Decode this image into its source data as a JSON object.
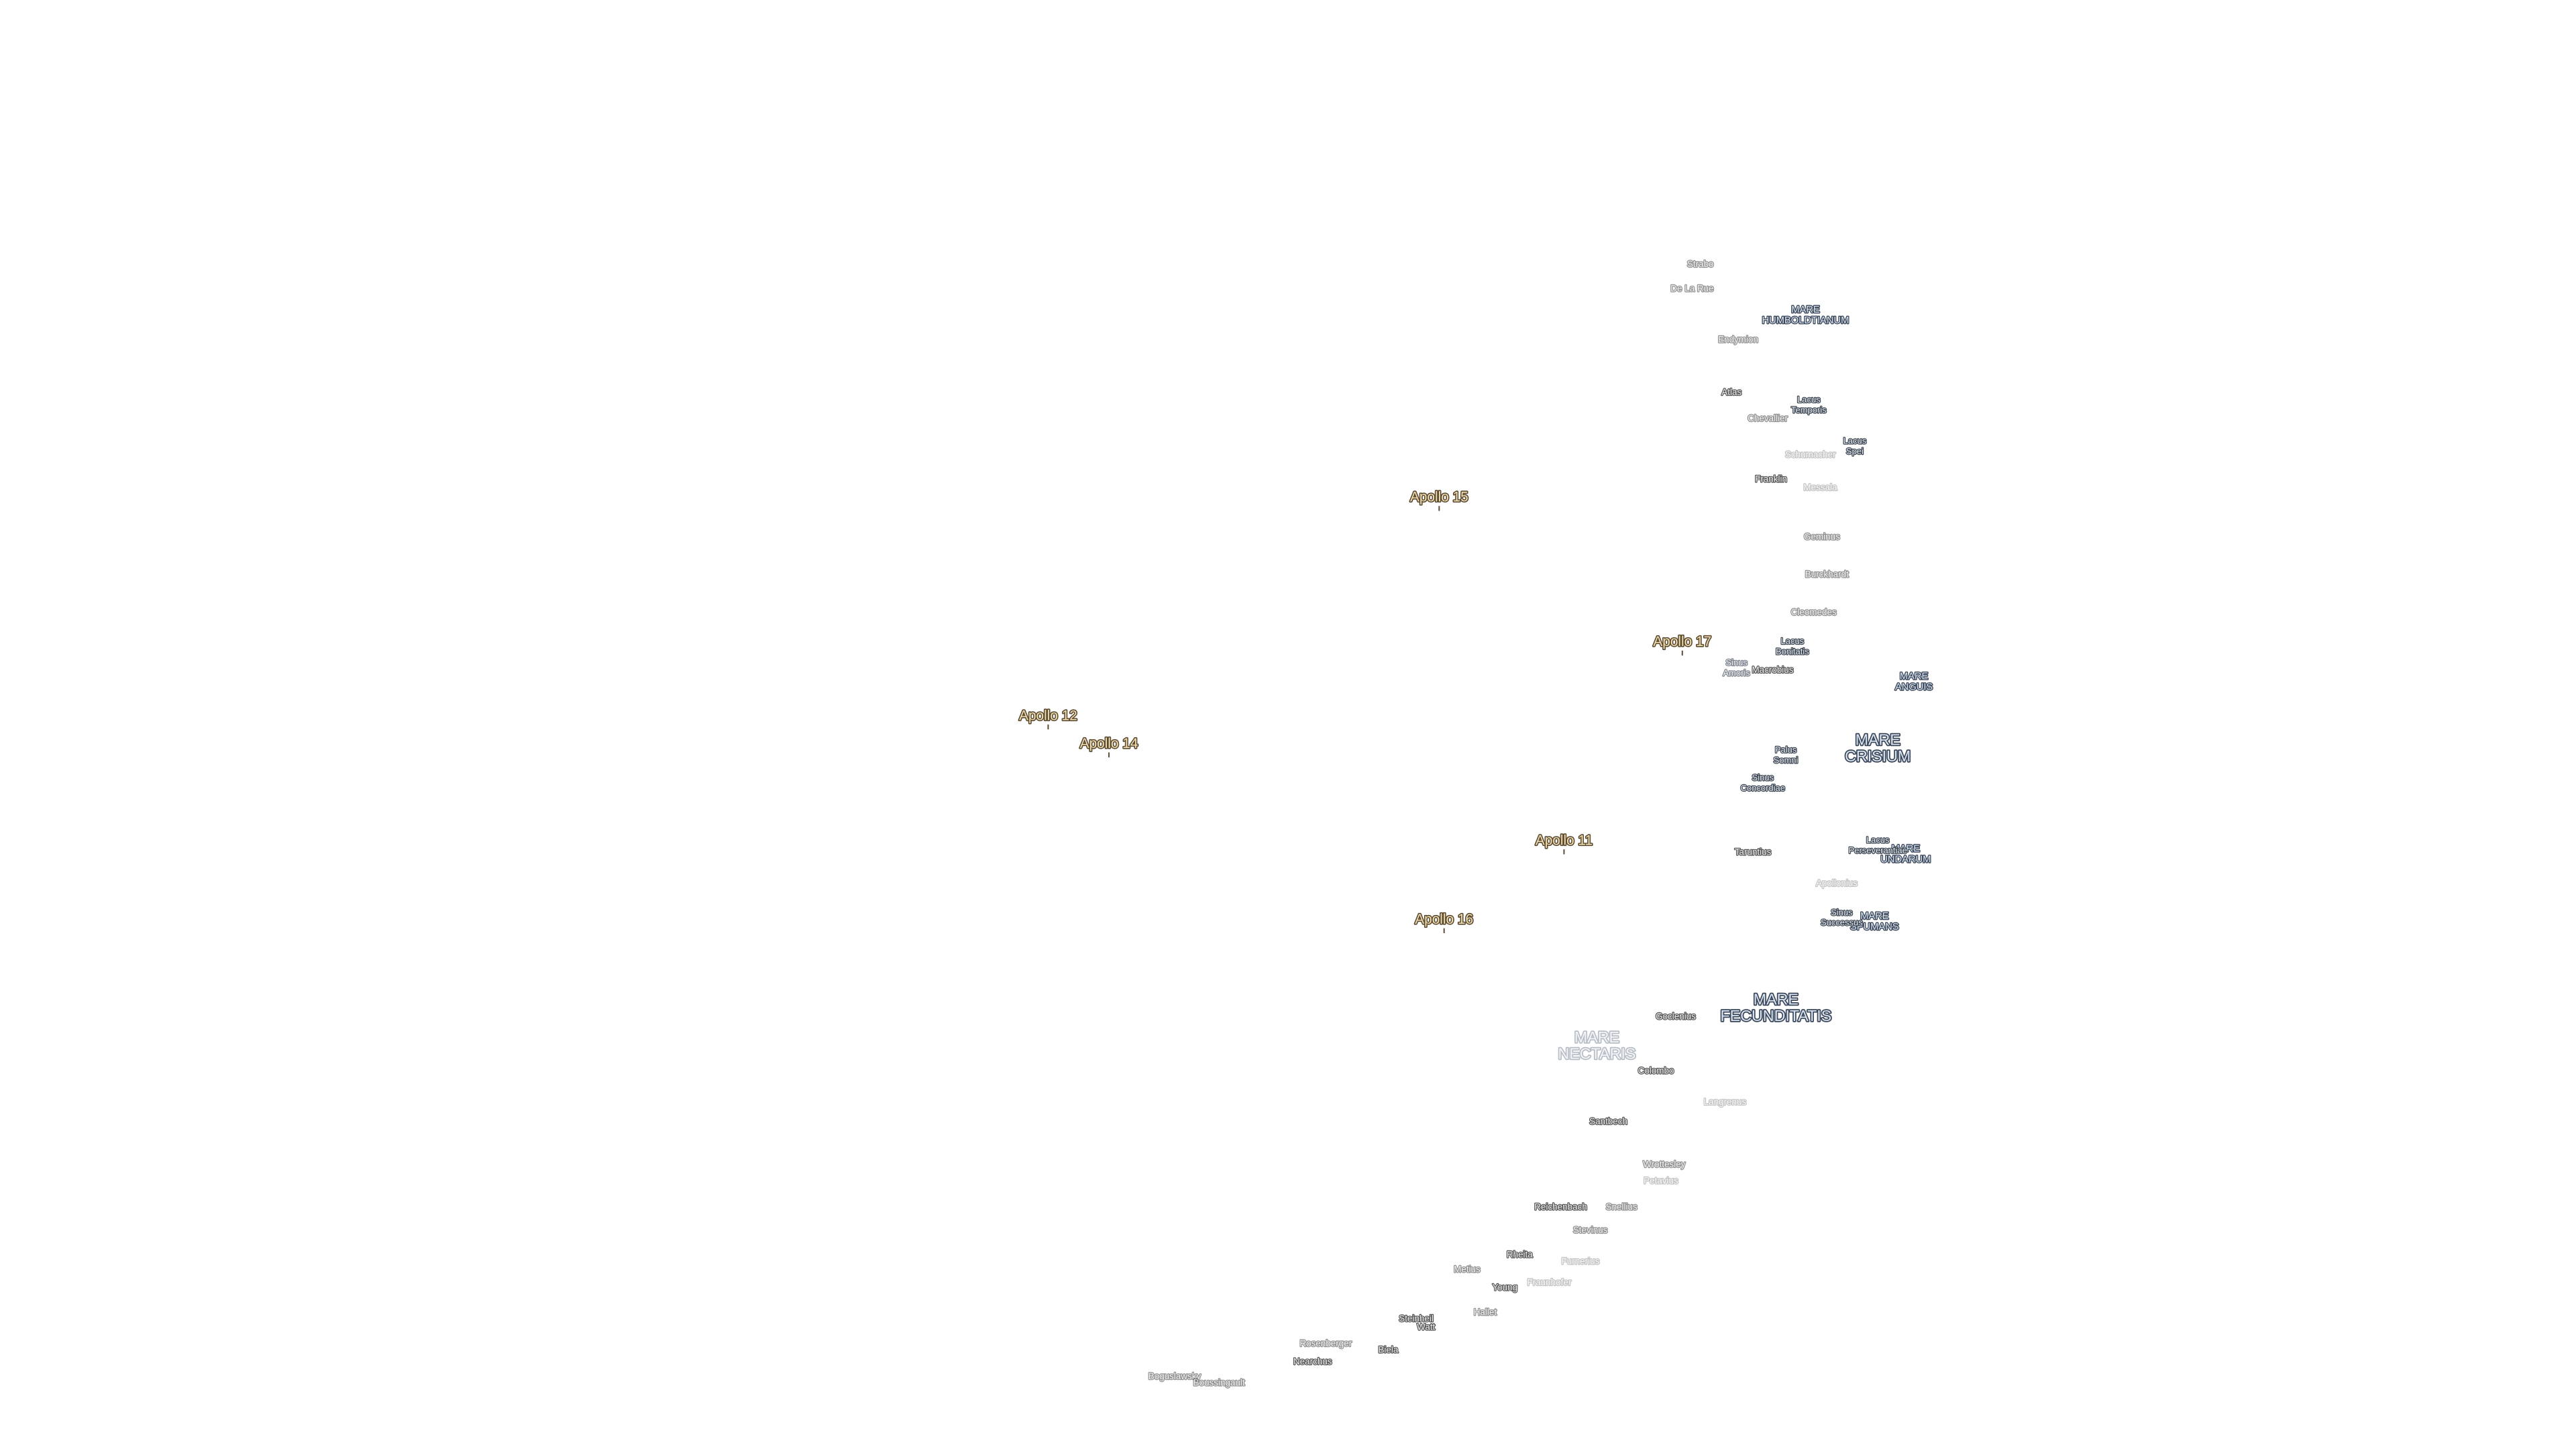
{
  "apollo_sites": [
    [
      "Apollo 15"
    ],
    [
      "Apollo 17"
    ],
    [
      "Apollo 12"
    ],
    [
      "Apollo 14"
    ],
    [
      "Apollo 11"
    ],
    [
      "Apollo 16"
    ]
  ],
  "maria": [
    [
      "MARE",
      "HUMBOLDTIANUM"
    ],
    [
      "MARE",
      "ANGUIS"
    ],
    [
      "MARE",
      "CRISIUM"
    ],
    [
      "MARE",
      "UNDARUM"
    ],
    [
      "MARE",
      "SPUMANS"
    ],
    [
      "MARE",
      "FECUNDITATIS"
    ],
    [
      "MARE",
      "NECTARIS"
    ]
  ],
  "lakes_bays_marshes": [
    [
      "Lacus",
      "Temporis"
    ],
    [
      "Lacus",
      "Spei"
    ],
    [
      "Lacus",
      "Bonitatis"
    ],
    [
      "Sinus",
      "Amoris"
    ],
    [
      "Palus",
      "Somni"
    ],
    [
      "Sinus",
      "Concordiae"
    ],
    [
      "Lacus",
      "Perseverantiae"
    ],
    [
      "Sinus",
      "Successus"
    ]
  ],
  "craters": [
    "Strabo",
    "De La Rue",
    "Endymion",
    "Atlas",
    "Chevallier",
    "Schumacher",
    "Franklin",
    "Messala",
    "Geminus",
    "Burckhardt",
    "Cleomedes",
    "Macrobius",
    "Taruntius",
    "Apollonius",
    "Goclenius",
    "Colombo",
    "Langrenus",
    "Santbech",
    "Wrottesley",
    "Petavius",
    "Reichenbach",
    "Snellius",
    "Stevinus",
    "Rheita",
    "Furnerius",
    "Metius",
    "Young",
    "Fraunhofer",
    "Hallet",
    "Steinheil",
    "Watt",
    "Rosenberger",
    "Biela",
    "Nearchus",
    "Boguslawsky",
    "Boussingault"
  ]
}
